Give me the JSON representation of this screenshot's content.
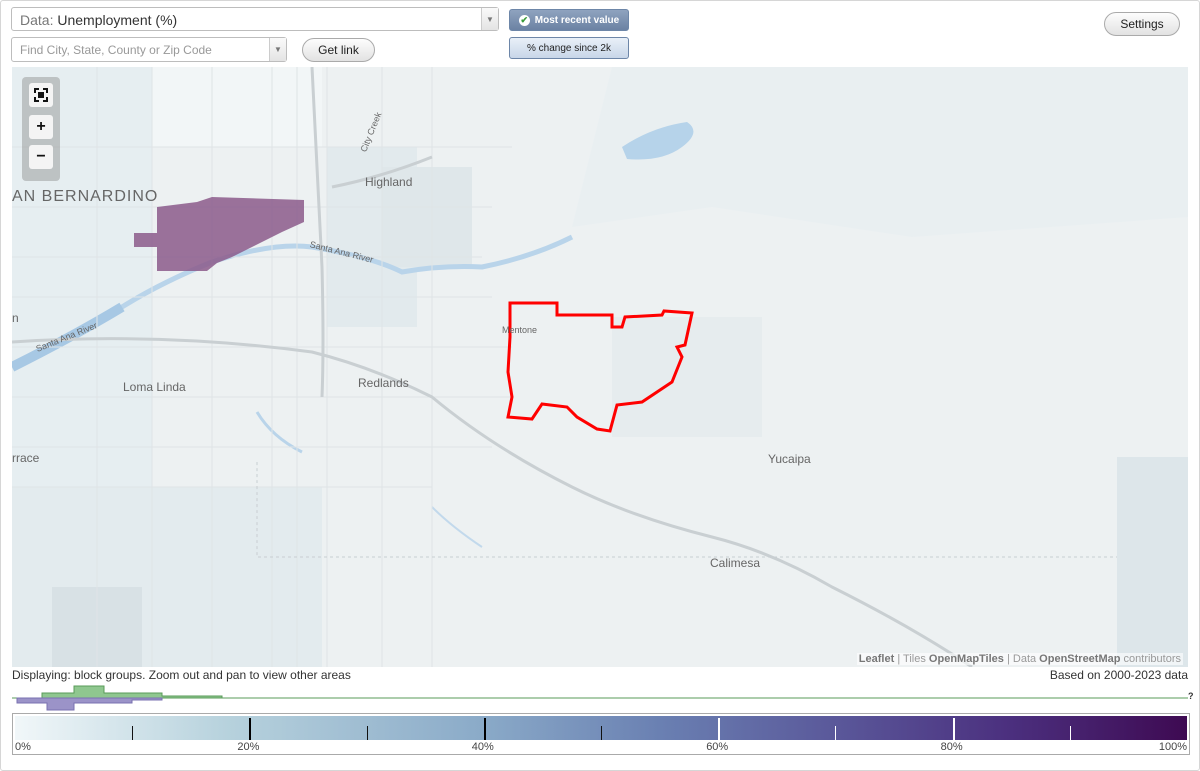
{
  "data_selector": {
    "prefix": "Data:",
    "value": "Unemployment (%)"
  },
  "search": {
    "placeholder": "Find City, State, County or Zip Code",
    "value": ""
  },
  "buttons": {
    "get_link": "Get link",
    "settings": "Settings"
  },
  "view_toggle": {
    "most_recent": "Most recent value",
    "percent_change": "% change since 2k",
    "active": "most_recent"
  },
  "zoom": {
    "fit_icon": "fit-bounds-icon",
    "zoom_in": "+",
    "zoom_out": "−"
  },
  "map_labels": {
    "san_bernardino": "AN BERNARDINO",
    "highland": "Highland",
    "city_creek": "City Creek",
    "santa_ana_river": "Santa Ana River",
    "santa_ana_river_2": "Santa Ana River",
    "mentone": "Mentone",
    "loma_linda": "Loma Linda",
    "redlands": "Redlands",
    "yucaipa": "Yucaipa",
    "calimesa": "Calimesa",
    "terrace": "rrace",
    "rialto": "n"
  },
  "attribution": {
    "leaflet": "Leaflet",
    "sep1": " | Tiles ",
    "tiles": "OpenMapTiles",
    "sep2": " | Data ",
    "osm": "OpenStreetMap",
    "tail": " contributors"
  },
  "status": {
    "displaying": "Displaying: block groups. Zoom out and pan to view other areas",
    "based_on": "Based on 2000-2023 data"
  },
  "help": "?",
  "legend": {
    "labels": [
      "0%",
      "20%",
      "40%",
      "60%",
      "80%",
      "100%"
    ],
    "min": 0,
    "max": 100
  },
  "colors": {
    "highlight": "#ff0000",
    "high_unemployment": "#8b5a8b",
    "accent": "#6b82a3"
  }
}
